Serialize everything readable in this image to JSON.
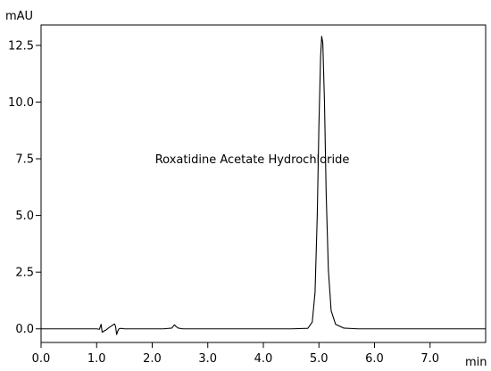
{
  "chart_data": {
    "type": "line",
    "title": "",
    "xlabel": "min",
    "ylabel": "mAU",
    "xlim": [
      0,
      8
    ],
    "ylim": [
      -0.6,
      13.4
    ],
    "x_ticks": [
      0,
      1,
      2,
      3,
      4,
      5,
      6,
      7
    ],
    "x_tick_labels": [
      "0.0",
      "1.0",
      "2.0",
      "3.0",
      "4.0",
      "5.0",
      "6.0",
      "7.0"
    ],
    "y_ticks": [
      0,
      2.5,
      5,
      7.5,
      10,
      12.5
    ],
    "y_tick_labels": [
      "0.0",
      "2.5",
      "5.0",
      "7.5",
      "10.0",
      "12.5"
    ],
    "grid": false,
    "legend": "none",
    "line_color": "#000000",
    "series": [
      {
        "x": [
          0,
          0.5,
          1.0,
          1.05,
          1.08,
          1.1,
          1.13,
          1.17,
          1.22,
          1.28,
          1.32,
          1.34,
          1.36,
          1.38,
          1.4,
          1.44,
          1.5,
          1.6,
          1.8,
          2.0,
          2.2,
          2.35,
          2.4,
          2.43,
          2.47,
          2.55,
          2.7,
          3.0,
          3.5,
          4.0,
          4.5,
          4.8,
          4.88,
          4.93,
          4.97,
          5.0,
          5.03,
          5.05,
          5.07,
          5.1,
          5.13,
          5.17,
          5.22,
          5.3,
          5.45,
          5.7,
          6.0,
          6.5,
          7.0,
          7.5,
          8.0
        ],
        "y": [
          0,
          0,
          0,
          -0.02,
          0.2,
          -0.15,
          -0.1,
          -0.05,
          0.05,
          0.15,
          0.22,
          0.12,
          -0.25,
          -0.1,
          0.0,
          0.02,
          0.0,
          0.0,
          0.0,
          0.0,
          0.0,
          0.03,
          0.18,
          0.1,
          0.03,
          0.0,
          0.0,
          0.0,
          0.0,
          0.0,
          0.0,
          0.02,
          0.3,
          1.6,
          5.0,
          9.0,
          12.0,
          12.9,
          12.6,
          10.0,
          6.0,
          2.6,
          0.8,
          0.2,
          0.03,
          0.0,
          0.0,
          0.0,
          0.0,
          0.0,
          0.0
        ]
      }
    ],
    "annotations": [
      {
        "text": "Roxatidine Acetate Hydrochloride",
        "x": 3.8,
        "y": 7.5
      }
    ]
  }
}
